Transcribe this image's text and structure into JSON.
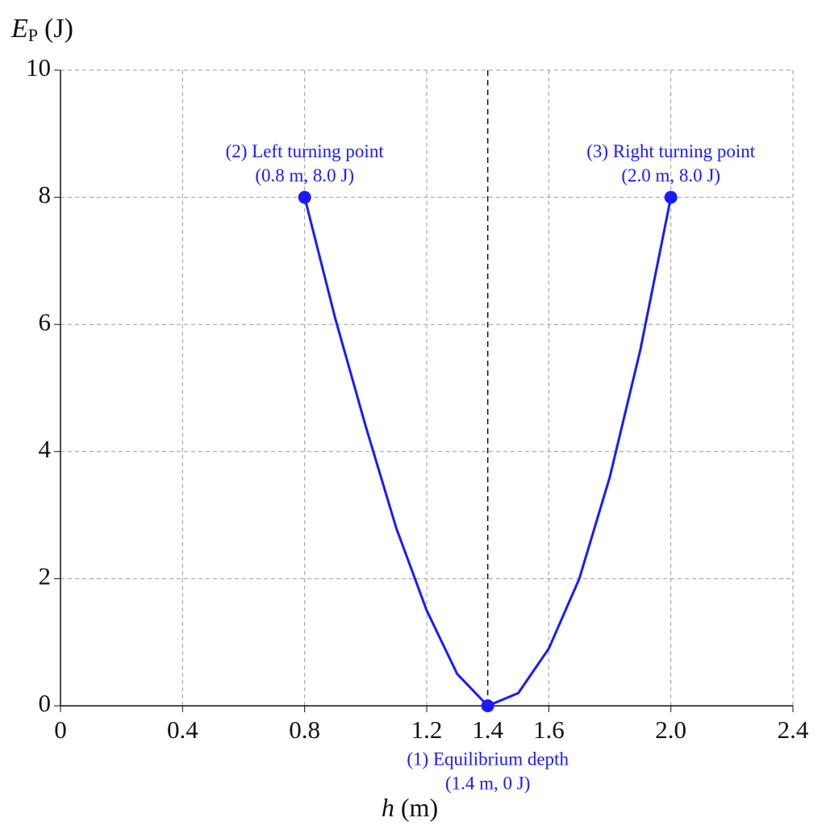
{
  "chart_data": {
    "type": "line",
    "ylabel": {
      "symbol": "E",
      "subscript": "P",
      "unit": "(J)"
    },
    "xlabel": {
      "symbol": "h",
      "unit": "(m)"
    },
    "x": [
      0.8,
      0.9,
      1.0,
      1.1,
      1.2,
      1.3,
      1.4,
      1.5,
      1.6,
      1.7,
      1.8,
      1.9,
      2.0
    ],
    "series": [
      {
        "color": "#1a1aff",
        "values": [
          8,
          6.1,
          4.4,
          2.8,
          1.5,
          0.5,
          0,
          0.2,
          0.9,
          2.0,
          3.6,
          5.6,
          8
        ]
      }
    ],
    "xlim": [
      0,
      2.4
    ],
    "xticks": [
      0,
      0.4,
      0.8,
      1.2,
      1.4,
      1.6,
      {
        "value": 2,
        "label": "2.0"
      },
      2.4
    ],
    "ylim": [
      0,
      10
    ],
    "yticks": [
      0,
      2,
      4,
      6,
      8,
      10
    ],
    "grid": true,
    "reference_line_x": 1.4,
    "annotations": [
      {
        "x": 1.4,
        "y": 0,
        "lines": [
          "(1) Equilibrium depth",
          "(1.4 m, 0 J)"
        ],
        "position": "below"
      },
      {
        "x": 0.8,
        "y": 8,
        "lines": [
          "(2) Left turning point",
          "(0.8 m, 8.0 J)"
        ],
        "position": "above"
      },
      {
        "x": 2,
        "y": 8,
        "lines": [
          "(3) Right turning point",
          "(2.0 m, 8.0 J)"
        ],
        "position": "above"
      }
    ]
  }
}
